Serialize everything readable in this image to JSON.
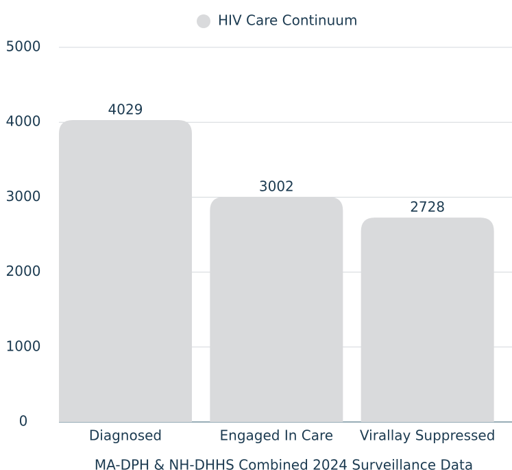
{
  "chart_data": {
    "type": "bar",
    "legend": "HIV Care Continuum",
    "x_label": "MA-DPH & NH-DHHS Combined 2024 Surveillance Data",
    "categories": [
      "Diagnosed",
      "Engaged In Care",
      "Virallay Suppressed"
    ],
    "values": [
      4029,
      3002,
      2728
    ],
    "color": "#d9dadc",
    "ylim": [
      0,
      5000
    ],
    "yticks": [
      0,
      1000,
      2000,
      3000,
      4000,
      5000
    ],
    "grid": true
  }
}
